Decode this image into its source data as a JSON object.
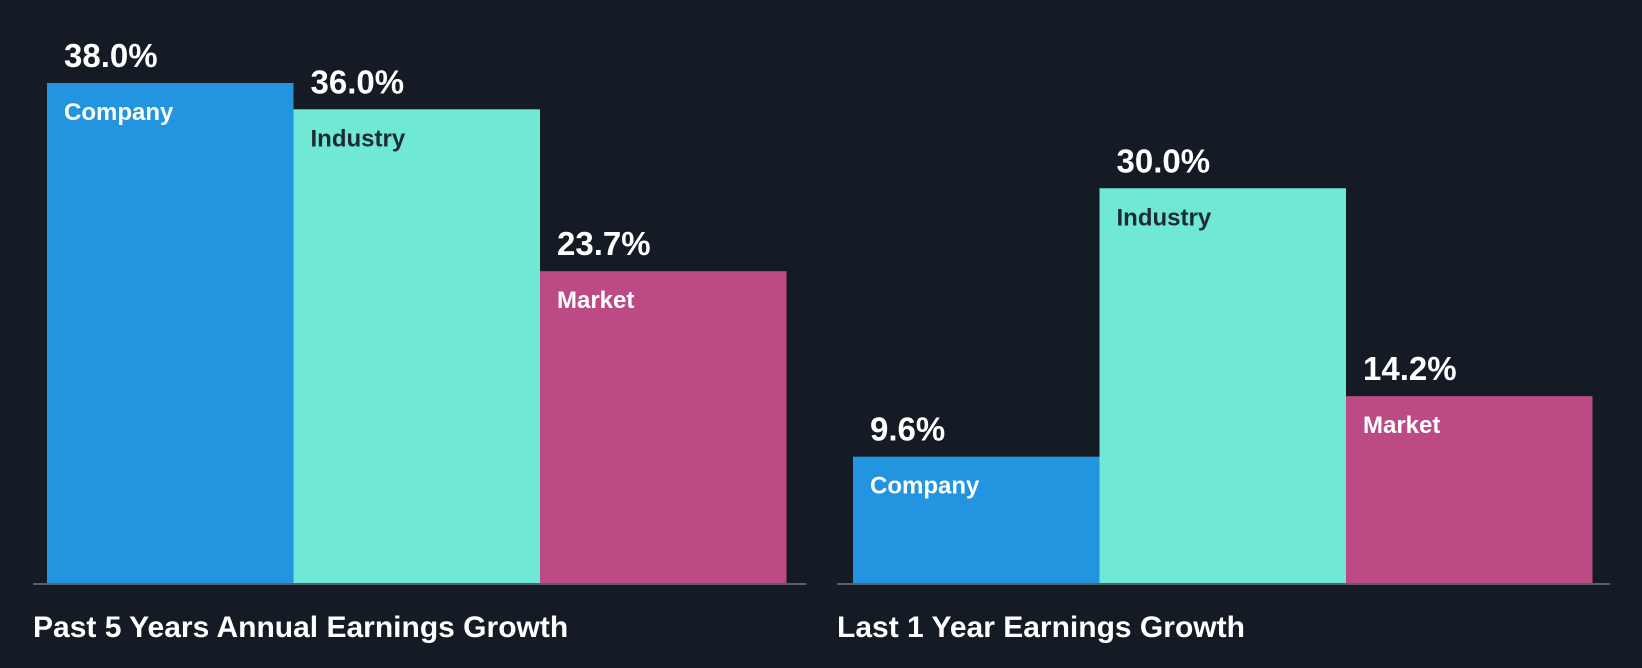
{
  "chart_data": [
    {
      "type": "bar",
      "title": "Past 5 Years Annual Earnings Growth",
      "categories": [
        "Company",
        "Industry",
        "Market"
      ],
      "values": [
        38.0,
        36.0,
        23.7
      ],
      "value_labels": [
        "38.0%",
        "36.0%",
        "23.7%"
      ],
      "colors": [
        "#2394e0",
        "#6fe8d6",
        "#bb4a85"
      ],
      "label_colors": [
        "#ffffff",
        "#1e2a33",
        "#ffffff"
      ],
      "ylim": [
        0,
        38
      ]
    },
    {
      "type": "bar",
      "title": "Last 1 Year Earnings Growth",
      "categories": [
        "Company",
        "Industry",
        "Market"
      ],
      "values": [
        9.6,
        30.0,
        14.2
      ],
      "value_labels": [
        "9.6%",
        "30.0%",
        "14.2%"
      ],
      "colors": [
        "#2394e0",
        "#6fe8d6",
        "#bb4a85"
      ],
      "label_colors": [
        "#ffffff",
        "#1e2a33",
        "#ffffff"
      ],
      "ylim": [
        0,
        38
      ]
    }
  ]
}
